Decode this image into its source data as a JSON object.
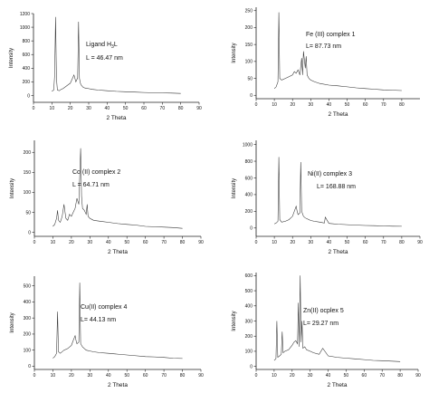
{
  "chart_data": [
    {
      "type": "line",
      "xlabel": "2 Theta",
      "ylabel": "Intensity",
      "xlim": [
        0,
        90
      ],
      "ylim": [
        -100,
        1200
      ],
      "xticks": [
        0,
        10,
        20,
        30,
        40,
        50,
        60,
        70,
        80,
        90
      ],
      "yticks": [
        0,
        200,
        400,
        600,
        800,
        1000,
        1200
      ],
      "annotations": [
        "Ligand H",
        "3",
        "L",
        "L = 46.47 nm"
      ],
      "x": [
        10,
        11,
        11.5,
        12,
        12.5,
        13,
        14,
        15,
        16,
        17,
        18,
        19,
        20,
        21,
        22,
        22.5,
        23,
        24,
        24.5,
        25,
        25.5,
        26,
        27,
        28,
        30,
        32,
        35,
        40,
        45,
        50,
        55,
        60,
        65,
        70,
        75,
        80
      ],
      "y": [
        60,
        80,
        300,
        1150,
        250,
        80,
        70,
        90,
        100,
        120,
        140,
        160,
        180,
        240,
        300,
        250,
        200,
        260,
        1080,
        250,
        180,
        150,
        120,
        110,
        100,
        90,
        80,
        70,
        60,
        55,
        50,
        45,
        40,
        38,
        35,
        30
      ]
    },
    {
      "type": "line",
      "xlabel": "2 Theta",
      "ylabel": "Intensity",
      "xlim": [
        0,
        90
      ],
      "ylim": [
        -10,
        260
      ],
      "xticks": [
        0,
        10,
        20,
        30,
        40,
        50,
        60,
        70,
        80
      ],
      "yticks": [
        0,
        50,
        100,
        150,
        200,
        250
      ],
      "annotations": [
        "Fe (III) complex 1",
        "L= 87.73 nm"
      ],
      "x": [
        10,
        11,
        12,
        12.5,
        13,
        14,
        16,
        18,
        20,
        21,
        22,
        23,
        24,
        25,
        25.5,
        26,
        27,
        27.5,
        28,
        29,
        30,
        32,
        35,
        40,
        45,
        50,
        55,
        60,
        65,
        70,
        75,
        80
      ],
      "y": [
        20,
        25,
        40,
        245,
        50,
        45,
        50,
        55,
        60,
        70,
        65,
        75,
        60,
        110,
        60,
        130,
        80,
        115,
        60,
        50,
        45,
        40,
        35,
        30,
        28,
        25,
        22,
        20,
        18,
        16,
        15,
        14
      ]
    },
    {
      "type": "line",
      "xlabel": "2 Theta",
      "ylabel": "Intensity",
      "xlim": [
        0,
        90
      ],
      "ylim": [
        -10,
        230
      ],
      "xticks": [
        0,
        10,
        20,
        30,
        40,
        50,
        60,
        70,
        80,
        90
      ],
      "yticks": [
        0,
        50,
        100,
        150,
        200
      ],
      "annotations": [
        "Co (II) complex 2",
        "L = 64.71 nm"
      ],
      "x": [
        10,
        11,
        12,
        12.5,
        13,
        14,
        15,
        16,
        17,
        18,
        19,
        20,
        21,
        22,
        23,
        24,
        25,
        25.5,
        26,
        27,
        28,
        28.5,
        29,
        30,
        32,
        35,
        40,
        45,
        50,
        55,
        60,
        65,
        70,
        75,
        80
      ],
      "y": [
        15,
        20,
        35,
        55,
        30,
        25,
        40,
        70,
        35,
        30,
        45,
        40,
        50,
        60,
        85,
        70,
        210,
        90,
        60,
        55,
        45,
        70,
        40,
        35,
        30,
        28,
        25,
        22,
        20,
        18,
        15,
        14,
        13,
        12,
        10
      ]
    },
    {
      "type": "line",
      "xlabel": "2 Theta",
      "ylabel": "Intensity",
      "xlim": [
        0,
        90
      ],
      "ylim": [
        -100,
        1050
      ],
      "xticks": [
        0,
        10,
        20,
        30,
        40,
        50,
        60,
        70,
        80,
        90
      ],
      "yticks": [
        0,
        200,
        400,
        600,
        800,
        1000
      ],
      "annotations": [
        "Ni(II) complex 3",
        "L= 168.88 nm"
      ],
      "x": [
        10,
        11,
        12,
        12.5,
        13,
        14,
        16,
        18,
        20,
        21,
        22,
        22.5,
        23,
        24,
        24.5,
        25,
        26,
        27,
        28,
        30,
        32,
        35,
        37.5,
        38,
        40,
        45,
        50,
        55,
        60,
        65,
        70,
        75,
        80
      ],
      "y": [
        50,
        60,
        80,
        850,
        100,
        70,
        80,
        100,
        140,
        200,
        260,
        200,
        160,
        180,
        790,
        200,
        140,
        120,
        110,
        90,
        80,
        70,
        60,
        130,
        55,
        45,
        40,
        35,
        30,
        28,
        25,
        22,
        20
      ]
    },
    {
      "type": "line",
      "xlabel": "2 Theta",
      "ylabel": "Intensity",
      "xlim": [
        0,
        90
      ],
      "ylim": [
        -20,
        560
      ],
      "xticks": [
        0,
        10,
        20,
        30,
        40,
        50,
        60,
        70,
        80,
        90
      ],
      "yticks": [
        0,
        100,
        200,
        300,
        400,
        500
      ],
      "annotations": [
        "Cu(II) complex 4",
        "L= 44.13 nm"
      ],
      "x": [
        10,
        11,
        12,
        12.5,
        13,
        14,
        16,
        18,
        20,
        21,
        22,
        22.5,
        23,
        24,
        24.5,
        25,
        26,
        27,
        28,
        30,
        32,
        35,
        40,
        45,
        50,
        55,
        60,
        65,
        70,
        75,
        80
      ],
      "y": [
        50,
        60,
        80,
        340,
        90,
        80,
        100,
        110,
        130,
        160,
        190,
        160,
        140,
        150,
        520,
        140,
        120,
        110,
        100,
        95,
        90,
        85,
        80,
        75,
        70,
        65,
        60,
        58,
        55,
        50,
        48
      ]
    },
    {
      "type": "line",
      "xlabel": "2 Theta",
      "ylabel": "Intensity",
      "xlim": [
        0,
        90
      ],
      "ylim": [
        -20,
        620
      ],
      "xticks": [
        0,
        10,
        20,
        30,
        40,
        50,
        60,
        70,
        80,
        90
      ],
      "yticks": [
        0,
        100,
        200,
        300,
        400,
        500,
        600
      ],
      "annotations": [
        "Zn(II) ocplex 5",
        "L= 29.27 nm"
      ],
      "x": [
        10,
        11,
        11.5,
        12,
        13,
        14,
        14.5,
        15,
        16,
        18,
        20,
        21,
        22,
        23,
        23.5,
        24,
        24.5,
        25,
        25.5,
        26,
        27,
        28,
        30,
        32,
        35,
        37,
        40,
        45,
        50,
        55,
        60,
        65,
        70,
        75,
        80
      ],
      "y": [
        40,
        50,
        300,
        60,
        70,
        80,
        230,
        90,
        100,
        110,
        140,
        160,
        170,
        150,
        420,
        130,
        600,
        160,
        300,
        120,
        130,
        110,
        100,
        90,
        80,
        120,
        70,
        60,
        55,
        50,
        45,
        40,
        38,
        35,
        32
      ]
    }
  ]
}
